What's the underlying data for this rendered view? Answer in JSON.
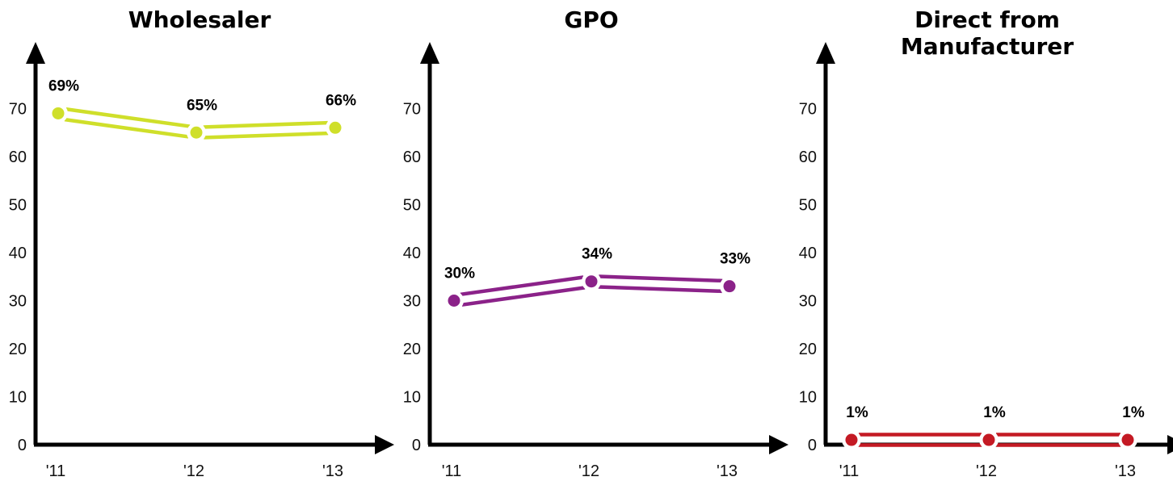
{
  "chart_data": [
    {
      "type": "line",
      "title": "Wholesaler",
      "categories": [
        "'11",
        "'12",
        "'13"
      ],
      "values": [
        69,
        65,
        66
      ],
      "data_labels": [
        "69%",
        "65%",
        "66%"
      ],
      "yticks": [
        "0",
        "10",
        "20",
        "30",
        "40",
        "50",
        "60",
        "70"
      ],
      "ylim": [
        0,
        80
      ],
      "color": "#cfdf2a"
    },
    {
      "type": "line",
      "title": "GPO",
      "categories": [
        "'11",
        "'12",
        "'13"
      ],
      "values": [
        30,
        34,
        33
      ],
      "data_labels": [
        "30%",
        "34%",
        "33%"
      ],
      "yticks": [
        "0",
        "10",
        "20",
        "30",
        "40",
        "50",
        "60",
        "70"
      ],
      "ylim": [
        0,
        80
      ],
      "color": "#8b2289"
    },
    {
      "type": "line",
      "title": "Direct from Manufacturer",
      "title_lines": [
        "Direct from",
        "Manufacturer"
      ],
      "categories": [
        "'11",
        "'12",
        "'13"
      ],
      "values": [
        1,
        1,
        1
      ],
      "data_labels": [
        "1%",
        "1%",
        "1%"
      ],
      "yticks": [
        "0",
        "10",
        "20",
        "30",
        "40",
        "50",
        "60",
        "70"
      ],
      "ylim": [
        0,
        80
      ],
      "color": "#c41a24"
    }
  ]
}
